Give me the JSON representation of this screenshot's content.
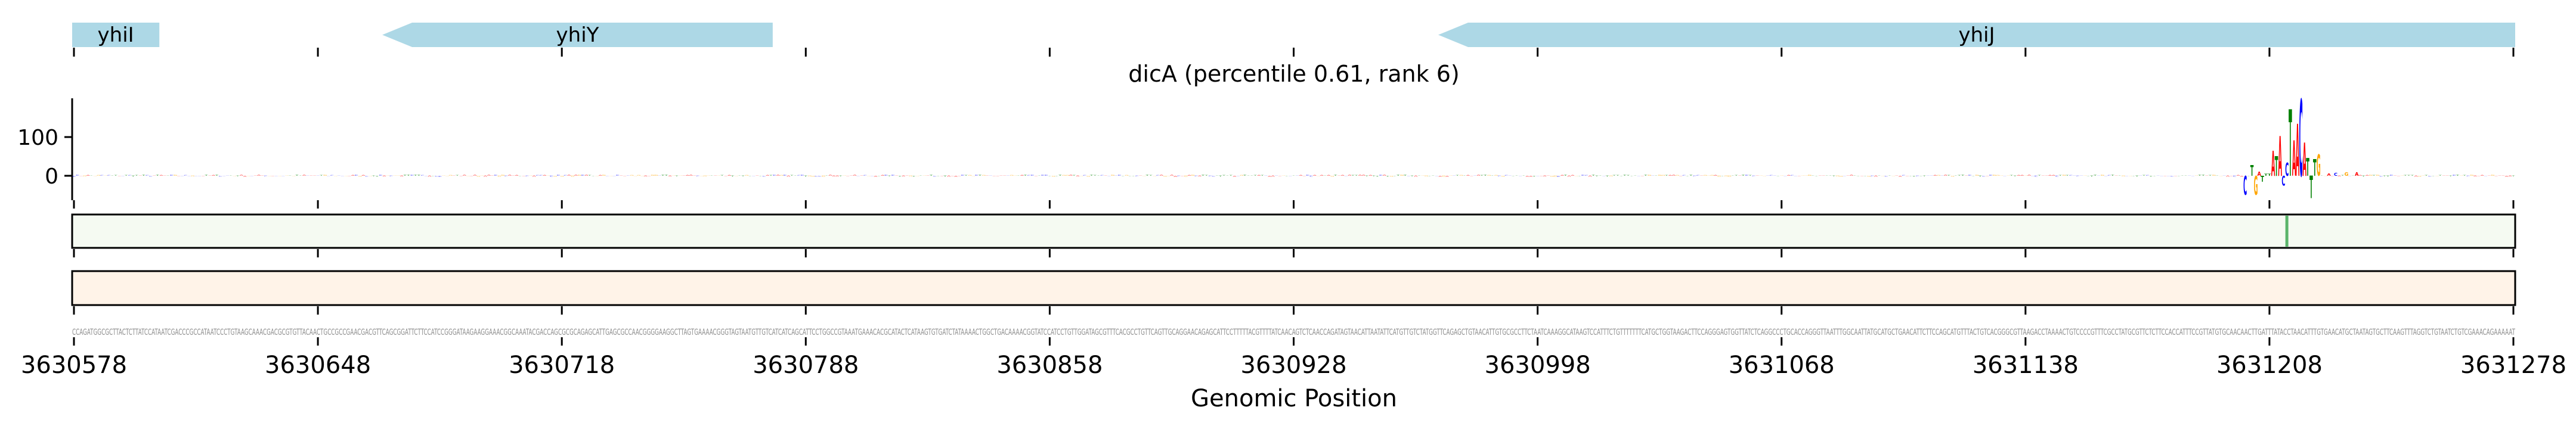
{
  "chart_data": {
    "type": "sequence-logo",
    "title": "dicA (percentile 0.61, rank 6)",
    "xlabel": "Genomic Position",
    "xlim": [
      3630578,
      3631278
    ],
    "x_ticks": [
      "3630578",
      "3630648",
      "3630718",
      "3630788",
      "3630858",
      "3630928",
      "3630998",
      "3631068",
      "3631138",
      "3631208",
      "3631278"
    ],
    "y_ticks": [
      "100",
      "0"
    ],
    "ylim": [
      -60,
      200
    ],
    "base_colors": {
      "A": "#ff0000",
      "C": "#0000ff",
      "G": "#ffa500",
      "T": "#008000"
    },
    "genes": [
      {
        "name": "yhiI",
        "start": 3630578,
        "end": 3630602,
        "arrow": false
      },
      {
        "name": "yhiY",
        "start": 3630667,
        "end": 3630778,
        "strand": "-",
        "arrow": true
      },
      {
        "name": "yhiJ",
        "start": 3630970,
        "end": 3631278,
        "strand": "-",
        "arrow": true
      }
    ],
    "gene_color": "#add8e6",
    "sequence": "CCAGATGGCGCTTACTCTTATCCATAATCGACCCGCCATAATCCCTGTAAGCAAACGACGCGTGTTACAACTGCCGCCGAACGACGTTCAGCGGATTCTTCCATCCGGGATAAGAAGGAAACGGCAAATACGACCAGCGCGCAGAGCATTGAGCGCCAACGGGGAAGGCTTAGTGAAAACGGGTAGTAATGTTGTCATCATCAGCATTCCTGGCCGTAAATGAAACACGCATACTCATAAGTGTGATCTATAAAACTGGCTGACAAAACGGTATCCATCCTGTTGGATAGCGTTTCACGCCTGTTCAGTTGCAGGAACAGAGCATTCCTTTTTACGTTTTATCAACAGTCTCAACCAGATAGTAACATTAATATTCATGTTGTCTATGGTTCAGAGCTGTAACATTGTGCGCCTTCTAATCAAAGGCATAAGTCCATTTCTGTTTTTTTCATGCTGGTAAGACTTCCAGGGAGTGGTTATCTCAGGCCCTGCACCAGGGTTAATTTGGCAATTATGCATGCTGAACATTCTTCCAGCATGTTTACTGTCACGGGCGTTAAGACCTAAAACTGTCCCCGTTTCGCCTATGCGTTCTCTTCCACCATTTCCGTTATGTGCAACAACTTGATTTATACCTAACATTTGTGAACATGCTAATAGTGCTTCAAGTTTAGGTCTGTAATCTGTCGAAACAGAAAAAT",
    "contributions": [
      {
        "position": 3631201,
        "base": "C",
        "value": -49
      },
      {
        "position": 3631203,
        "base": "T",
        "value": 28
      },
      {
        "position": 3631204,
        "base": "G",
        "value": -49
      },
      {
        "position": 3631205,
        "base": "A",
        "value": 11
      },
      {
        "position": 3631206,
        "base": "T",
        "value": -15
      },
      {
        "position": 3631207,
        "base": "T",
        "value": 5
      },
      {
        "position": 3631208,
        "base": "T",
        "value": 5
      },
      {
        "position": 3631209,
        "base": "A",
        "value": 65
      },
      {
        "position": 3631210,
        "base": "T",
        "value": 51
      },
      {
        "position": 3631211,
        "base": "A",
        "value": 103
      },
      {
        "position": 3631212,
        "base": "C",
        "value": -25
      },
      {
        "position": 3631213,
        "base": "C",
        "value": 34
      },
      {
        "position": 3631214,
        "base": "T",
        "value": 172
      },
      {
        "position": 3631215,
        "base": "A",
        "value": 91
      },
      {
        "position": 3631216,
        "base": "A",
        "value": 134
      },
      {
        "position": 3631217,
        "base": "C",
        "value": 198
      },
      {
        "position": 3631218,
        "base": "A",
        "value": 86
      },
      {
        "position": 3631219,
        "base": "T",
        "value": 46
      },
      {
        "position": 3631220,
        "base": "T",
        "value": -58
      },
      {
        "position": 3631221,
        "base": "T",
        "value": 43
      },
      {
        "position": 3631222,
        "base": "G",
        "value": 55
      },
      {
        "position": 3631225,
        "base": "A",
        "value": 6
      },
      {
        "position": 3631227,
        "base": "C",
        "value": 8
      },
      {
        "position": 3631230,
        "base": "G",
        "value": 9
      },
      {
        "position": 3631233,
        "base": "A",
        "value": 9
      }
    ],
    "green_track": {
      "color": "#f5faf2",
      "highlight_position": 3631213,
      "highlight_color": "#5ab46a"
    },
    "orange_track": {
      "color": "#fff3e8"
    }
  }
}
